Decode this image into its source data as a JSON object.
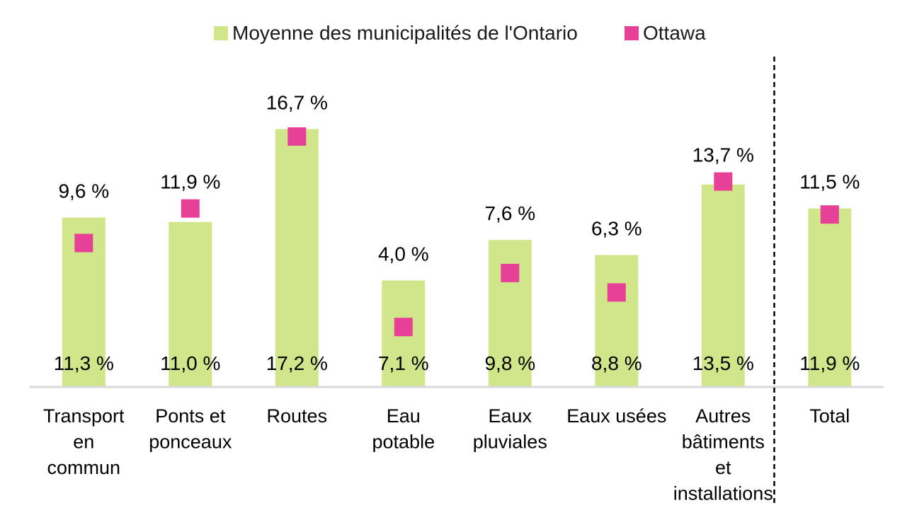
{
  "chart_data": {
    "type": "bar",
    "categories": [
      [
        "Transport",
        "en",
        "commun"
      ],
      [
        "Ponts et",
        "ponceaux"
      ],
      [
        "Routes"
      ],
      [
        "Eau",
        "potable"
      ],
      [
        "Eaux",
        "pluviales"
      ],
      [
        "Eaux usées"
      ],
      [
        "Autres",
        "bâtiments",
        "et",
        "installations"
      ],
      [
        "Total"
      ]
    ],
    "series": [
      {
        "name": "Moyenne des municipalités de l'Ontario",
        "color": "#d1e68a",
        "values": [
          11.3,
          11.0,
          17.2,
          7.1,
          9.8,
          8.8,
          13.5,
          11.9
        ],
        "labels": [
          "11,3 %",
          "11,0 %",
          "17,2 %",
          "7,1 %",
          "9,8 %",
          "8,8 %",
          "13,5 %",
          "11,9 %"
        ]
      },
      {
        "name": "Ottawa",
        "color": "#e64097",
        "values": [
          9.6,
          11.9,
          16.7,
          4.0,
          7.6,
          6.3,
          13.7,
          11.5
        ],
        "labels": [
          "9,6 %",
          "11,9 %",
          "16,7 %",
          "4,0 %",
          "7,6 %",
          "6,3 %",
          "13,7 %",
          "11,5 %"
        ]
      }
    ],
    "ylim": [
      0,
      18
    ],
    "legend_position": "top",
    "grid": false,
    "separator_before_category": 7
  }
}
